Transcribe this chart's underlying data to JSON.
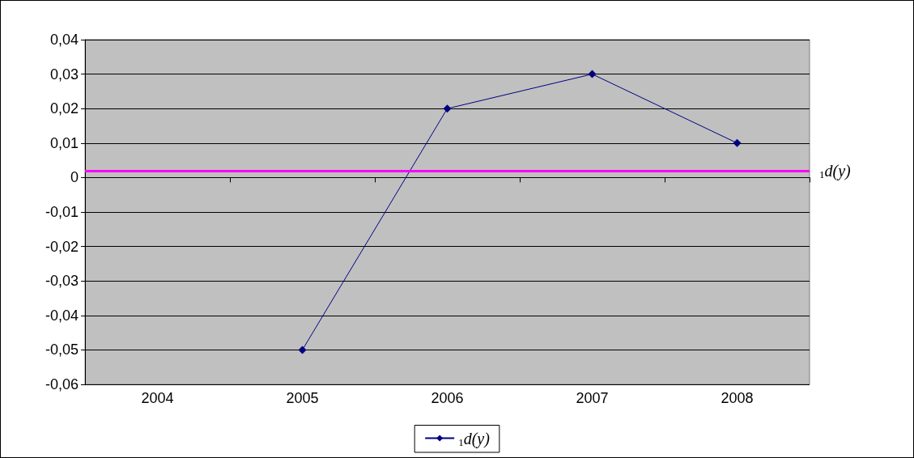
{
  "chart_data": {
    "type": "line",
    "categories": [
      "2004",
      "2005",
      "2006",
      "2007",
      "2008"
    ],
    "series": [
      {
        "name": "$_{1}$d(y)",
        "color": "#000080",
        "values": [
          null,
          -0.05,
          0.02,
          0.03,
          0.01
        ]
      }
    ],
    "ylim": [
      -0.06,
      0.04
    ],
    "yticks": [
      {
        "value": -0.06,
        "label": "-0,06"
      },
      {
        "value": -0.05,
        "label": "-0,05"
      },
      {
        "value": -0.04,
        "label": "-0,04"
      },
      {
        "value": -0.03,
        "label": "-0,03"
      },
      {
        "value": -0.02,
        "label": "-0,02"
      },
      {
        "value": -0.01,
        "label": "-0,01"
      },
      {
        "value": 0,
        "label": "0"
      },
      {
        "value": 0.01,
        "label": "0,01"
      },
      {
        "value": 0.02,
        "label": "0,02"
      },
      {
        "value": 0.03,
        "label": "0,03"
      },
      {
        "value": 0.04,
        "label": "0,04"
      }
    ],
    "ref_lines": [
      {
        "axis": "y",
        "value": 0.002,
        "label": "$_{1}$d(y)",
        "color": "#ff00ff",
        "line_style": "solid"
      }
    ],
    "grid": "y",
    "legend": "bottom",
    "marker": "diamond",
    "line_style": "solid"
  }
}
